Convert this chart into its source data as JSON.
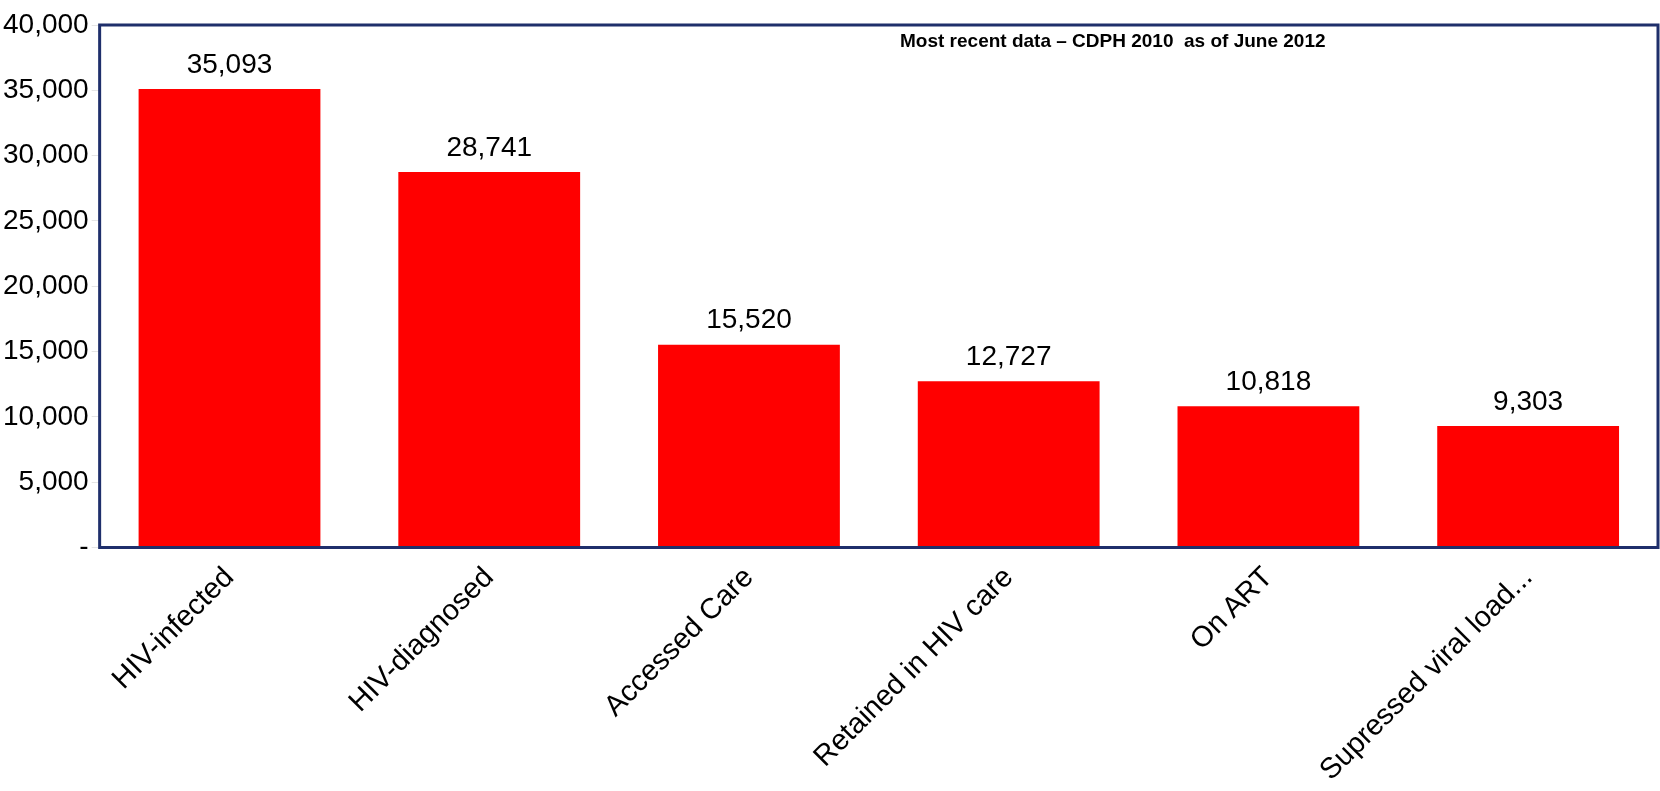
{
  "chart_data": {
    "type": "bar",
    "categories": [
      "HIV-infected",
      "HIV-diagnosed",
      "Accessed Care",
      "Retained in HIV care",
      "On ART",
      "Supressed viral load..."
    ],
    "values": [
      35093,
      28741,
      15520,
      12727,
      10818,
      9303
    ],
    "color": "#ff0000",
    "ylim": [
      0,
      40000
    ],
    "yticks": [
      {
        "value": 0,
        "label": "-"
      },
      {
        "value": 5000,
        "label": "5,000"
      },
      {
        "value": 10000,
        "label": "10,000"
      },
      {
        "value": 15000,
        "label": "15,000"
      },
      {
        "value": 20000,
        "label": "20,000"
      },
      {
        "value": 25000,
        "label": "25,000"
      },
      {
        "value": 30000,
        "label": "30,000"
      },
      {
        "value": 35000,
        "label": "35,000"
      },
      {
        "value": 40000,
        "label": "40,000"
      }
    ],
    "value_labels": [
      "35,093",
      "28,741",
      "15,520",
      "12,727",
      "10,818",
      "9,303"
    ],
    "grid": false,
    "legend": false,
    "annotations": [
      "Most recent data – CDPH 2010  as of June 2012"
    ]
  }
}
